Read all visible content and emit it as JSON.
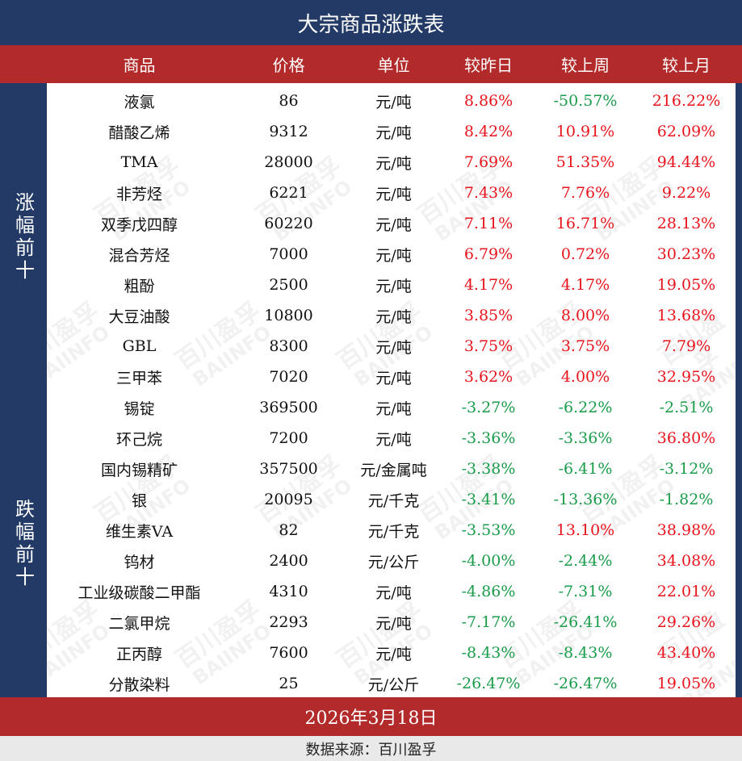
{
  "title": "大宗商品涨跌表",
  "headers": [
    "商品",
    "价格",
    "单位",
    "较昨日",
    "较上周",
    "较上月"
  ],
  "groups": {
    "up": "涨幅前十",
    "down": "跌幅前十"
  },
  "rows_up": [
    {
      "name": "液氯",
      "price": "86",
      "unit": "元/吨",
      "d": "8.86%",
      "w": "-50.57%",
      "m": "216.22%"
    },
    {
      "name": "醋酸乙烯",
      "price": "9312",
      "unit": "元/吨",
      "d": "8.42%",
      "w": "10.91%",
      "m": "62.09%"
    },
    {
      "name": "TMA",
      "price": "28000",
      "unit": "元/吨",
      "d": "7.69%",
      "w": "51.35%",
      "m": "94.44%"
    },
    {
      "name": "非芳烃",
      "price": "6221",
      "unit": "元/吨",
      "d": "7.43%",
      "w": "7.76%",
      "m": "9.22%"
    },
    {
      "name": "双季戊四醇",
      "price": "60220",
      "unit": "元/吨",
      "d": "7.11%",
      "w": "16.71%",
      "m": "28.13%"
    },
    {
      "name": "混合芳烃",
      "price": "7000",
      "unit": "元/吨",
      "d": "6.79%",
      "w": "0.72%",
      "m": "30.23%"
    },
    {
      "name": "粗酚",
      "price": "2500",
      "unit": "元/吨",
      "d": "4.17%",
      "w": "4.17%",
      "m": "19.05%"
    },
    {
      "name": "大豆油酸",
      "price": "10800",
      "unit": "元/吨",
      "d": "3.85%",
      "w": "8.00%",
      "m": "13.68%"
    },
    {
      "name": "GBL",
      "price": "8300",
      "unit": "元/吨",
      "d": "3.75%",
      "w": "3.75%",
      "m": "7.79%"
    },
    {
      "name": "三甲苯",
      "price": "7020",
      "unit": "元/吨",
      "d": "3.62%",
      "w": "4.00%",
      "m": "32.95%"
    }
  ],
  "rows_down": [
    {
      "name": "锡锭",
      "price": "369500",
      "unit": "元/吨",
      "d": "-3.27%",
      "w": "-6.22%",
      "m": "-2.51%"
    },
    {
      "name": "环己烷",
      "price": "7200",
      "unit": "元/吨",
      "d": "-3.36%",
      "w": "-3.36%",
      "m": "36.80%"
    },
    {
      "name": "国内锡精矿",
      "price": "357500",
      "unit": "元/金属吨",
      "d": "-3.38%",
      "w": "-6.41%",
      "m": "-3.12%"
    },
    {
      "name": "银",
      "price": "20095",
      "unit": "元/千克",
      "d": "-3.41%",
      "w": "-13.36%",
      "m": "-1.82%"
    },
    {
      "name": "维生素VA",
      "price": "82",
      "unit": "元/千克",
      "d": "-3.53%",
      "w": "13.10%",
      "m": "38.98%"
    },
    {
      "name": "钨材",
      "price": "2400",
      "unit": "元/公斤",
      "d": "-4.00%",
      "w": "-2.44%",
      "m": "34.08%"
    },
    {
      "name": "工业级碳酸二甲酯",
      "price": "4310",
      "unit": "元/吨",
      "d": "-4.86%",
      "w": "-7.31%",
      "m": "22.01%"
    },
    {
      "name": "二氯甲烷",
      "price": "2293",
      "unit": "元/吨",
      "d": "-7.17%",
      "w": "-26.41%",
      "m": "29.26%"
    },
    {
      "name": "正丙醇",
      "price": "7600",
      "unit": "元/吨",
      "d": "-8.43%",
      "w": "-8.43%",
      "m": "43.40%"
    },
    {
      "name": "分散染料",
      "price": "25",
      "unit": "元/公斤",
      "d": "-26.47%",
      "w": "-26.47%",
      "m": "19.05%"
    }
  ],
  "date": "2026年3月18日",
  "source": "数据来源：百川盈孚",
  "watermark": {
    "cn": "百川盈孚",
    "en": "BAIINFO"
  },
  "colors": {
    "navy": "#223a65",
    "red_band": "#b22a2a",
    "up": "#e8141c",
    "down": "#1a9c4a"
  }
}
